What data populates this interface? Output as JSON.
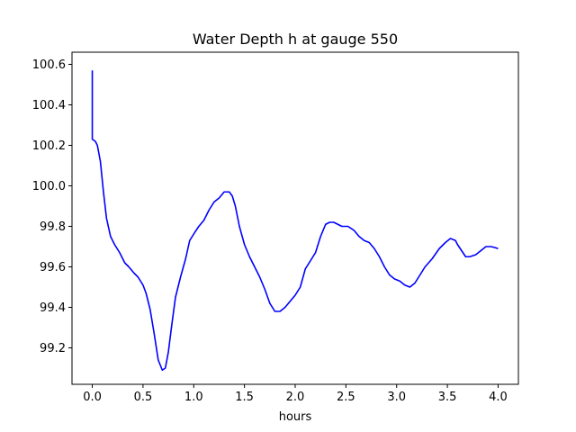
{
  "chart_data": {
    "type": "line",
    "title": "Water Depth h at gauge 550",
    "xlabel": "hours",
    "ylabel": "",
    "xlim": [
      -0.2,
      4.2
    ],
    "ylim": [
      99.02,
      100.66
    ],
    "grid": false,
    "x_ticks": [
      0.0,
      0.5,
      1.0,
      1.5,
      2.0,
      2.5,
      3.0,
      3.5,
      4.0
    ],
    "x_tick_labels": [
      "0.0",
      "0.5",
      "1.0",
      "1.5",
      "2.0",
      "2.5",
      "3.0",
      "3.5",
      "4.0"
    ],
    "y_ticks": [
      99.2,
      99.4,
      99.6,
      99.8,
      100.0,
      100.2,
      100.4,
      100.6
    ],
    "y_tick_labels": [
      "99.2",
      "99.4",
      "99.6",
      "99.8",
      "100.0",
      "100.2",
      "100.4",
      "100.6"
    ],
    "series": [
      {
        "color": "#0000ff",
        "x": [
          0.0,
          0.0,
          0.0,
          0.03,
          0.05,
          0.08,
          0.11,
          0.14,
          0.18,
          0.22,
          0.27,
          0.32,
          0.36,
          0.41,
          0.45,
          0.5,
          0.53,
          0.57,
          0.61,
          0.65,
          0.69,
          0.72,
          0.75,
          0.78,
          0.82,
          0.87,
          0.92,
          0.96,
          1.01,
          1.05,
          1.1,
          1.15,
          1.2,
          1.25,
          1.3,
          1.35,
          1.38,
          1.41,
          1.45,
          1.5,
          1.55,
          1.6,
          1.65,
          1.7,
          1.75,
          1.8,
          1.85,
          1.9,
          1.95,
          2.0,
          2.05,
          2.1,
          2.15,
          2.2,
          2.25,
          2.3,
          2.34,
          2.38,
          2.42,
          2.46,
          2.52,
          2.58,
          2.63,
          2.68,
          2.73,
          2.78,
          2.83,
          2.88,
          2.93,
          2.98,
          3.03,
          3.08,
          3.13,
          3.18,
          3.23,
          3.28,
          3.35,
          3.42,
          3.48,
          3.53,
          3.58,
          3.6,
          3.64,
          3.68,
          3.72,
          3.78,
          3.83,
          3.88,
          3.93,
          3.97,
          4.0
        ],
        "y": [
          100.57,
          100.23,
          100.23,
          100.22,
          100.2,
          100.12,
          99.97,
          99.84,
          99.75,
          99.71,
          99.67,
          99.62,
          99.6,
          99.57,
          99.55,
          99.51,
          99.47,
          99.39,
          99.27,
          99.14,
          99.09,
          99.1,
          99.18,
          99.3,
          99.45,
          99.55,
          99.64,
          99.73,
          99.77,
          99.8,
          99.83,
          99.88,
          99.92,
          99.94,
          99.97,
          99.97,
          99.95,
          99.9,
          99.8,
          99.71,
          99.65,
          99.6,
          99.55,
          99.49,
          99.42,
          99.38,
          99.38,
          99.4,
          99.43,
          99.46,
          99.5,
          99.59,
          99.63,
          99.67,
          99.75,
          99.81,
          99.82,
          99.82,
          99.81,
          99.8,
          99.8,
          99.78,
          99.75,
          99.73,
          99.72,
          99.69,
          99.65,
          99.6,
          99.56,
          99.54,
          99.53,
          99.51,
          99.5,
          99.52,
          99.56,
          99.6,
          99.64,
          99.69,
          99.72,
          99.74,
          99.73,
          99.71,
          99.68,
          99.65,
          99.65,
          99.66,
          99.68,
          99.7,
          99.7,
          99.695,
          99.69
        ]
      }
    ]
  }
}
